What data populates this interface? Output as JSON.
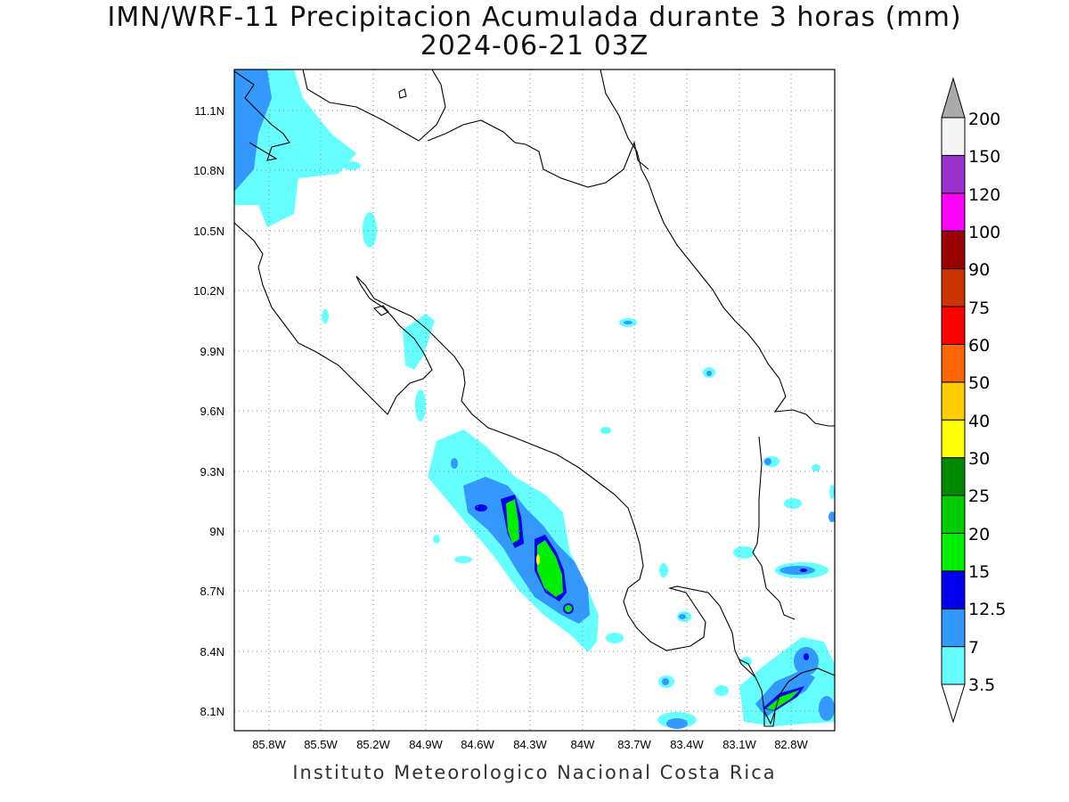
{
  "title": "IMN/WRF-11 Precipitacion Acumulada durante 3 horas (mm)",
  "subtitle": "2024-06-21 03Z",
  "footer": "Instituto Meteorologico Nacional Costa Rica",
  "map": {
    "lon_range": [
      -86.0,
      -82.55
    ],
    "lat_range": [
      8.0,
      11.3
    ],
    "x_ticks": [
      "85.8W",
      "85.5W",
      "85.2W",
      "84.9W",
      "84.6W",
      "84.3W",
      "84W",
      "83.7W",
      "83.4W",
      "83.1W",
      "82.8W"
    ],
    "y_ticks": [
      "11.1N",
      "10.8N",
      "10.5N",
      "10.2N",
      "9.9N",
      "9.6N",
      "9.3N",
      "9N",
      "8.7N",
      "8.4N",
      "8.1N"
    ],
    "grid": "dotted"
  },
  "colorbar": {
    "unit": "mm",
    "levels": [
      "3.5",
      "7",
      "12.5",
      "15",
      "20",
      "25",
      "30",
      "40",
      "50",
      "60",
      "75",
      "90",
      "100",
      "120",
      "150",
      "200"
    ],
    "colors": [
      "#66ffff",
      "#3399ff",
      "#0000ee",
      "#00ee00",
      "#00cc00",
      "#008800",
      "#ffff00",
      "#ffcc00",
      "#ff6600",
      "#ff0000",
      "#cc3300",
      "#990000",
      "#ff00ff",
      "#9933cc",
      "#f5f5f5",
      "#aaaaaa"
    ]
  }
}
